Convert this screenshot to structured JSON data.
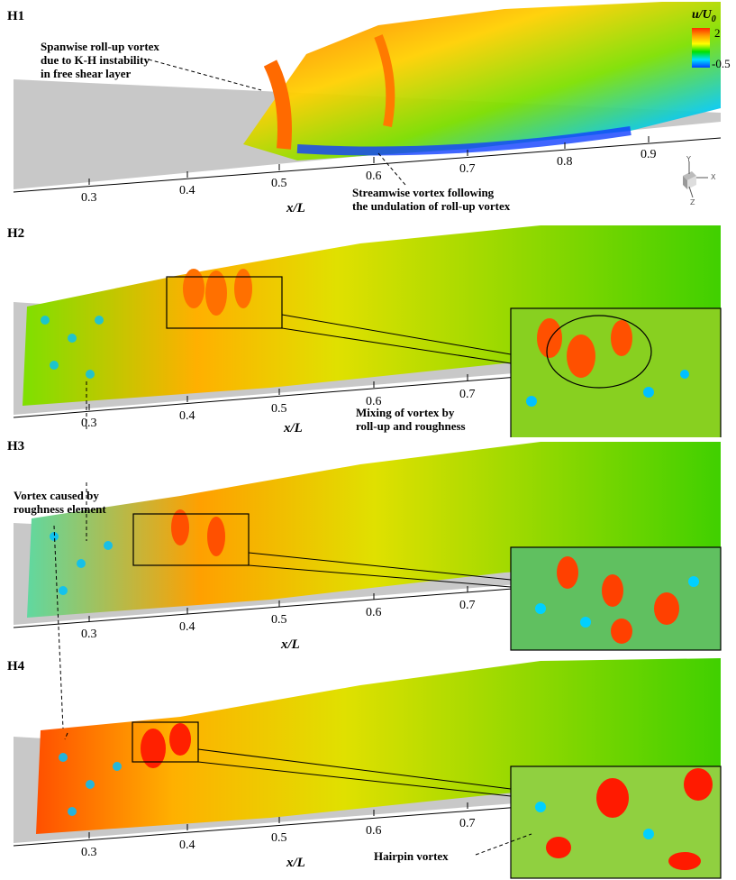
{
  "panels": [
    {
      "label": "H1",
      "ticks": [
        "0.3",
        "0.4",
        "0.5",
        "0.6",
        "0.7",
        "0.8",
        "0.9"
      ],
      "xlabel": "x/L"
    },
    {
      "label": "H2",
      "ticks": [
        "0.3",
        "0.4",
        "0.5",
        "0.6",
        "0.7"
      ],
      "xlabel": "x/L"
    },
    {
      "label": "H3",
      "ticks": [
        "0.3",
        "0.4",
        "0.5",
        "0.6",
        "0.7"
      ],
      "xlabel": "x/L"
    },
    {
      "label": "H4",
      "ticks": [
        "0.3",
        "0.4",
        "0.5",
        "0.6",
        "0.7"
      ],
      "xlabel": "x/L"
    }
  ],
  "colorbar": {
    "title": "u/U",
    "title_sub": "0",
    "max": "2",
    "min": "-0.5",
    "colors": [
      "#ff2a00",
      "#ffa000",
      "#ffff00",
      "#00e000",
      "#00e0ff",
      "#0040ff"
    ]
  },
  "axes_triad": {
    "y": "Y",
    "x": "X",
    "z": "Z"
  },
  "annotations": {
    "spanwise": [
      "Spanwise roll-up vortex",
      "due to K-H instability",
      "in free shear layer"
    ],
    "streamwise": [
      "Streamwise vortex following",
      "the undulation of roll-up vortex"
    ],
    "mixing": [
      "Mixing of vortex by",
      "roll-up and roughness"
    ],
    "roughness": [
      "Vortex caused by",
      "roughness element"
    ],
    "hairpin": "Hairpin vortex"
  }
}
